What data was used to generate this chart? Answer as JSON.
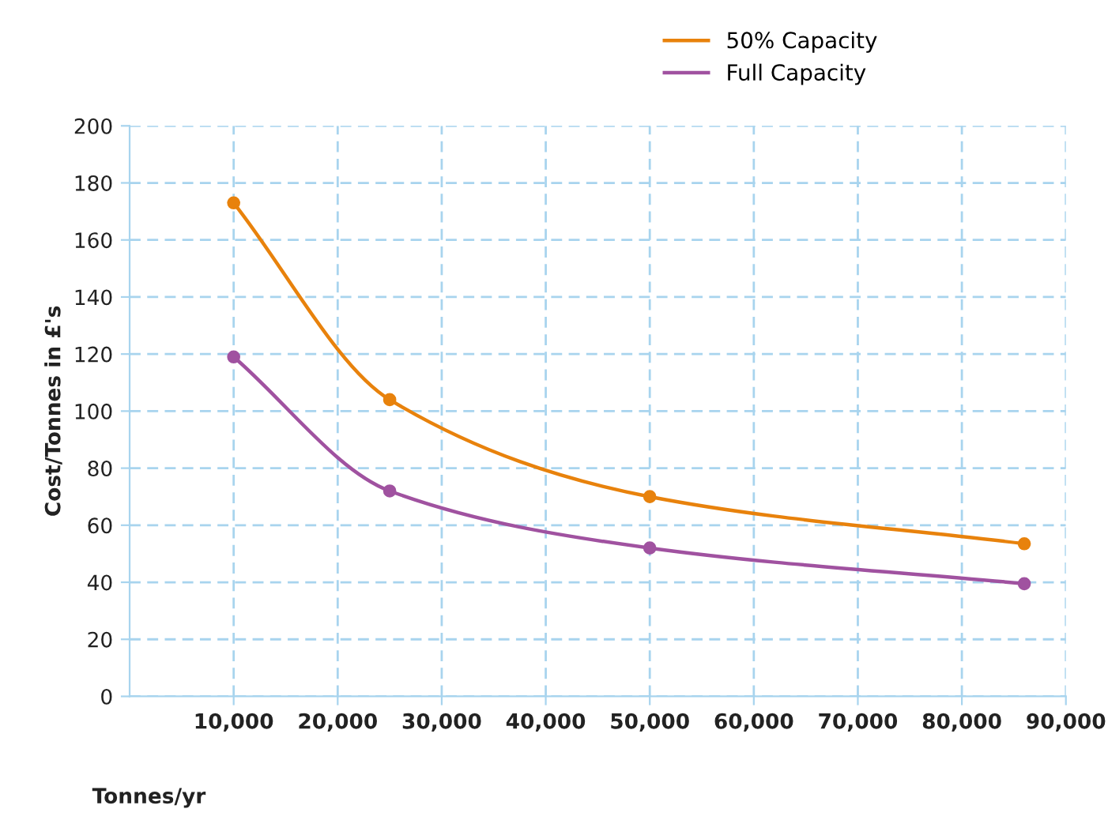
{
  "chart_data": {
    "type": "line",
    "xlabel": "Tonnes/yr",
    "ylabel": "Cost/Tonnes in £'s",
    "x": [
      10000,
      25000,
      50000,
      86000
    ],
    "series": [
      {
        "name": "50% Capacity",
        "color": "#e8820c",
        "values": [
          173,
          104,
          70,
          53.5
        ]
      },
      {
        "name": "Full Capacity",
        "color": "#a052a0",
        "values": [
          119,
          72,
          52,
          39.5
        ]
      }
    ],
    "xlim": [
      0,
      90000
    ],
    "xticks": [
      {
        "value": 10000,
        "label": "10,000"
      },
      {
        "value": 20000,
        "label": "20,000"
      },
      {
        "value": 30000,
        "label": "30,000"
      },
      {
        "value": 40000,
        "label": "40,000"
      },
      {
        "value": 50000,
        "label": "50,000"
      },
      {
        "value": 60000,
        "label": "60,000"
      },
      {
        "value": 70000,
        "label": "70,000"
      },
      {
        "value": 80000,
        "label": "80,000"
      },
      {
        "value": 90000,
        "label": "90,000"
      }
    ],
    "ylim": [
      0,
      200
    ],
    "yticks": [
      0,
      20,
      40,
      60,
      80,
      100,
      120,
      140,
      160,
      180,
      200
    ],
    "grid": true,
    "legend": "top right",
    "marker": "circle",
    "line_style": "solid"
  }
}
